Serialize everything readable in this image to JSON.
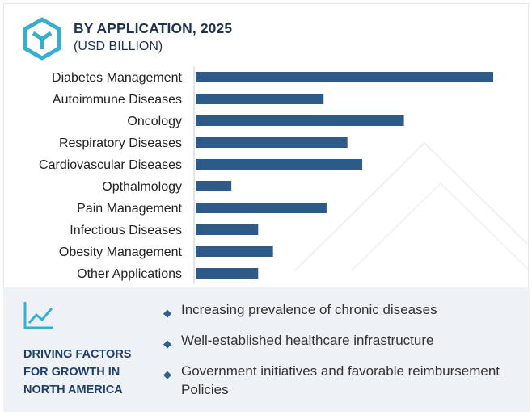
{
  "header": {
    "title": "BY APPLICATION, 2025",
    "subtitle": "(USD BILLION)",
    "logo_icon": "cube-logo-icon",
    "accent_color": "#3aaed0"
  },
  "chart_data": {
    "type": "bar",
    "orientation": "horizontal",
    "title": "BY APPLICATION, 2025",
    "subtitle": "(USD BILLION)",
    "categories": [
      "Diabetes Management",
      "Autoimmune Diseases",
      "Oncology",
      "Respiratory Diseases",
      "Cardiovascular Diseases",
      "Opthalmology",
      "Pain Management",
      "Infectious Diseases",
      "Obesity Management",
      "Other Applications"
    ],
    "values": [
      100,
      43,
      70,
      51,
      56,
      12,
      44,
      21,
      26,
      21
    ],
    "value_note": "relative values, no axis printed",
    "bar_color": "#2d5a87",
    "grid": false,
    "legend": "none"
  },
  "factors": {
    "icon": "trend-line-chart-icon",
    "heading": "DRIVING FACTORS\nFOR GROWTH IN\nNORTH AMERICA",
    "bullet_icon": "diamond-bullet-icon",
    "items": [
      "Increasing prevalence of chronic diseases",
      "Well-established healthcare infrastructure",
      "Government initiatives and favorable reimbursement Policies"
    ]
  }
}
